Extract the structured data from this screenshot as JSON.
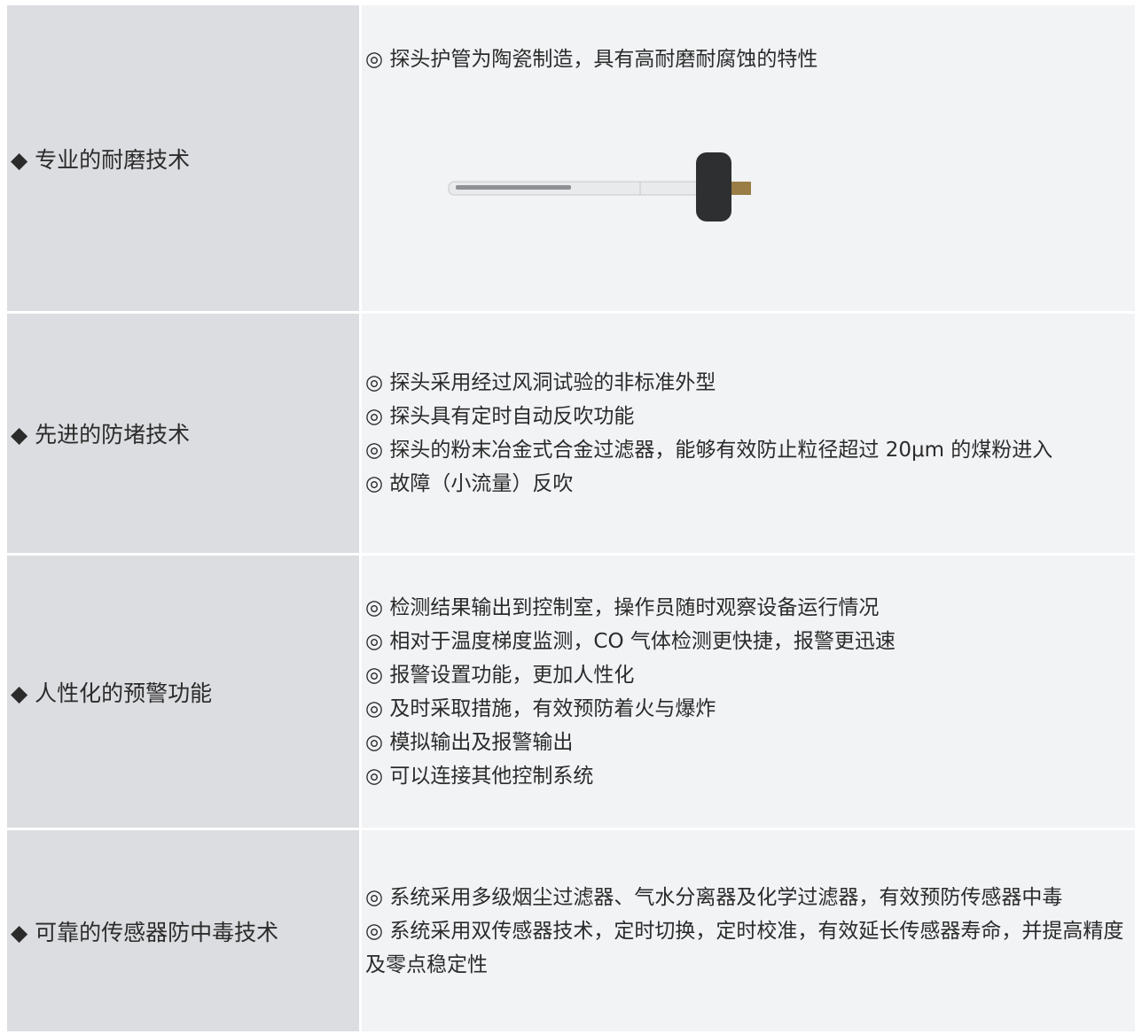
{
  "table": {
    "rows": [
      {
        "label": "◆ 专业的耐磨技术",
        "items": [
          "◎ 探头护管为陶瓷制造，具有高耐磨耐腐蚀的特性"
        ]
      },
      {
        "label": "◆ 先进的防堵技术",
        "items": [
          "◎ 探头采用经过风洞试验的非标准外型",
          "◎ 探头具有定时自动反吹功能",
          "◎ 探头的粉末冶金式合金过滤器，能够有效防止粒径超过 20μm 的煤粉进入",
          "◎ 故障（小流量）反吹"
        ]
      },
      {
        "label": "◆ 人性化的预警功能",
        "items": [
          "◎ 检测结果输出到控制室，操作员随时观察设备运行情况",
          "◎ 相对于温度梯度监测，CO 气体检测更快捷，报警更迅速",
          "◎ 报警设置功能，更加人性化",
          "◎ 及时采取措施，有效预防着火与爆炸",
          "◎ 模拟输出及报警输出",
          "◎ 可以连接其他控制系统"
        ]
      },
      {
        "label": "◆ 可靠的传感器防中毒技术",
        "items": [
          "◎ 系统采用多级烟尘过滤器、气水分离器及化学过滤器，有效预防传感器中毒",
          "◎ 系统采用双传感器技术，定时切换，定时校准，有效延长传感器寿命，并提高精度及零点稳定性"
        ]
      }
    ]
  }
}
